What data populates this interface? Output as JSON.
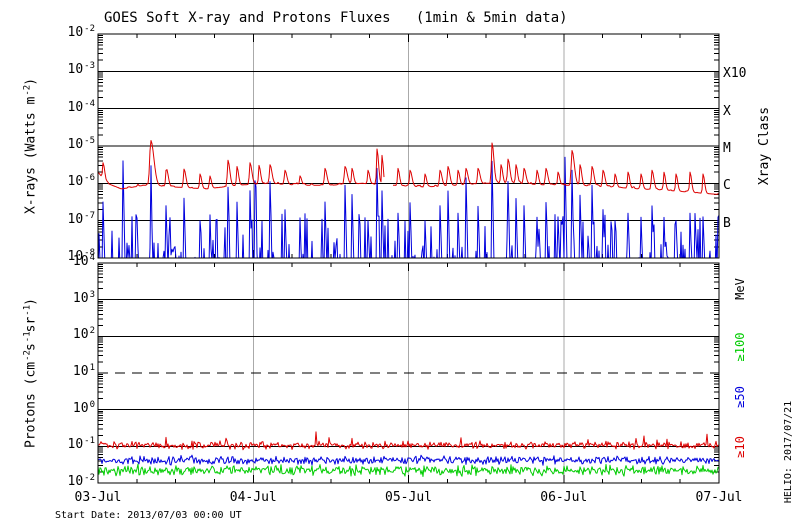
{
  "header": {
    "title": "GOES Soft X-ray and Protons Fluxes   (1min & 5min data)"
  },
  "footer": {
    "start_date": "Start Date: 2013/07/03 00:00 UT",
    "credit": "HELIO: 2017/07/21"
  },
  "colors": {
    "background": "#ffffff",
    "axis": "#000000",
    "day_gridline": "#aaaaaa",
    "xray_long": "#dd0000",
    "xray_short": "#0000dd",
    "protons_ge10": "#dd0000",
    "protons_ge50": "#0000dd",
    "protons_ge100": "#00cc00"
  },
  "chart_data": {
    "type": "line",
    "title": "GOES Soft X-ray and Protons Fluxes (1min & 5min data)",
    "x_axis": {
      "tick_labels": [
        "03-Jul",
        "04-Jul",
        "05-Jul",
        "06-Jul",
        "07-Jul"
      ],
      "minor_tick_hours": 6,
      "start": "2013/07/03 00:00 UT",
      "days": 4
    },
    "panels": [
      {
        "name": "xray",
        "ylabel_parts": [
          [
            "X-rays (Watts m",
            0
          ],
          [
            "-2",
            1
          ],
          [
            ")",
            0
          ]
        ],
        "ylim_log": [
          -8,
          -2
        ],
        "y_tick_exponents": [
          -2,
          -3,
          -4,
          -5,
          -6,
          -7,
          -8
        ],
        "hlines_log": [
          -3,
          -4,
          -5,
          -6,
          -7
        ],
        "right_axis": {
          "title": "Xray Class",
          "title_log": -5,
          "labels": [
            {
              "text": "X10",
              "log": -3
            },
            {
              "text": "X",
              "log": -4
            },
            {
              "text": "M",
              "log": -5
            },
            {
              "text": "C",
              "log": -6
            },
            {
              "text": "B",
              "log": -7
            }
          ]
        },
        "series": [
          {
            "name": "xray-short-05-4A",
            "color": "#0000dd",
            "kind": "spiky",
            "baseline_log": -8.45,
            "baseline_noise_dex": 0.25,
            "random_spikes": {
              "probability": 0.35,
              "log_min": -8.1,
              "log_span": 1.3
            },
            "spikes": [
              [
                0.032,
                -6.5
              ],
              [
                0.161,
                -5.4
              ],
              [
                0.25,
                -6.9
              ],
              [
                0.34,
                -5.45
              ],
              [
                0.438,
                -6.6
              ],
              [
                0.554,
                -6.4
              ],
              [
                0.657,
                -7.0
              ],
              [
                0.72,
                -6.8
              ],
              [
                0.837,
                -6.1
              ],
              [
                0.895,
                -6.5
              ],
              [
                0.979,
                -6.2
              ],
              [
                1.013,
                -5.25
              ],
              [
                1.108,
                -5.95
              ],
              [
                1.204,
                -6.7
              ],
              [
                1.3,
                -6.9
              ],
              [
                1.462,
                -6.5
              ],
              [
                1.591,
                -6.05
              ],
              [
                1.636,
                -6.3
              ],
              [
                1.739,
                -7.0
              ],
              [
                1.797,
                -5.6
              ],
              [
                1.829,
                -6.2
              ],
              [
                1.932,
                -6.8
              ],
              [
                2.01,
                -6.5
              ],
              [
                2.106,
                -7.0
              ],
              [
                2.203,
                -6.6
              ],
              [
                2.254,
                -6.2
              ],
              [
                2.319,
                -6.8
              ],
              [
                2.37,
                -5.85
              ],
              [
                2.448,
                -6.6
              ],
              [
                2.538,
                -5.4
              ],
              [
                2.641,
                -5.95
              ],
              [
                2.692,
                -6.4
              ],
              [
                2.744,
                -6.6
              ],
              [
                2.827,
                -6.9
              ],
              [
                2.885,
                -6.5
              ],
              [
                2.963,
                -6.9
              ],
              [
                3.008,
                -5.3
              ],
              [
                3.053,
                -5.65
              ],
              [
                3.105,
                -6.3
              ],
              [
                3.182,
                -6.05
              ],
              [
                3.253,
                -6.7
              ],
              [
                3.33,
                -7.0
              ],
              [
                3.414,
                -6.8
              ],
              [
                3.497,
                -6.9
              ],
              [
                3.568,
                -6.6
              ],
              [
                3.645,
                -6.9
              ],
              [
                3.723,
                -7.0
              ],
              [
                3.813,
                -6.8
              ],
              [
                3.897,
                -6.9
              ]
            ]
          },
          {
            "name": "xray-long-1-8A",
            "color": "#dd0000",
            "kind": "baseline",
            "baseline_log": [
              [
                0,
                -5.7
              ],
              [
                0.06,
                -6.0
              ],
              [
                0.15,
                -6.15
              ],
              [
                0.3,
                -6.05
              ],
              [
                0.5,
                -6.1
              ],
              [
                0.7,
                -6.15
              ],
              [
                0.9,
                -6.05
              ],
              [
                1.1,
                -6.0
              ],
              [
                1.3,
                -6.05
              ],
              [
                1.5,
                -6.05
              ],
              [
                1.7,
                -6.0
              ],
              [
                1.9,
                -6.05
              ],
              [
                2.1,
                -6.1
              ],
              [
                2.3,
                -6.05
              ],
              [
                2.5,
                -6.0
              ],
              [
                2.7,
                -6.0
              ],
              [
                2.9,
                -6.05
              ],
              [
                3.1,
                -6.05
              ],
              [
                3.3,
                -6.1
              ],
              [
                3.5,
                -6.15
              ],
              [
                3.7,
                -6.2
              ],
              [
                3.85,
                -6.25
              ],
              [
                4.0,
                -6.3
              ]
            ],
            "noise_dex": 0.07,
            "gaps": [
              [
                1.845,
                1.895
              ]
            ],
            "spikes": [
              [
                0.032,
                -5.45,
                0.01
              ],
              [
                0.34,
                -4.85,
                0.02
              ],
              [
                0.44,
                -5.6,
                0.012
              ],
              [
                0.554,
                -5.62,
                0.012
              ],
              [
                0.657,
                -5.75,
                0.01
              ],
              [
                0.72,
                -5.8,
                0.01
              ],
              [
                0.837,
                -5.38,
                0.012
              ],
              [
                0.895,
                -5.55,
                0.01
              ],
              [
                0.979,
                -5.45,
                0.012
              ],
              [
                1.037,
                -5.52,
                0.01
              ],
              [
                1.108,
                -5.5,
                0.012
              ],
              [
                1.204,
                -5.65,
                0.012
              ],
              [
                1.301,
                -5.8,
                0.01
              ],
              [
                1.462,
                -5.6,
                0.012
              ],
              [
                1.591,
                -5.55,
                0.014
              ],
              [
                1.636,
                -5.6,
                0.01
              ],
              [
                1.739,
                -5.65,
                0.01
              ],
              [
                1.797,
                -5.08,
                0.01
              ],
              [
                1.829,
                -5.25,
                0.008
              ],
              [
                1.932,
                -5.6,
                0.01
              ],
              [
                2.01,
                -5.65,
                0.012
              ],
              [
                2.106,
                -5.75,
                0.01
              ],
              [
                2.203,
                -5.65,
                0.012
              ],
              [
                2.254,
                -5.55,
                0.012
              ],
              [
                2.319,
                -5.65,
                0.01
              ],
              [
                2.37,
                -5.6,
                0.012
              ],
              [
                2.448,
                -5.6,
                0.012
              ],
              [
                2.538,
                -4.92,
                0.012
              ],
              [
                2.596,
                -5.5,
                0.01
              ],
              [
                2.641,
                -5.35,
                0.012
              ],
              [
                2.692,
                -5.5,
                0.01
              ],
              [
                2.744,
                -5.6,
                0.012
              ],
              [
                2.827,
                -5.65,
                0.01
              ],
              [
                2.885,
                -5.6,
                0.012
              ],
              [
                2.963,
                -5.7,
                0.01
              ],
              [
                3.053,
                -5.12,
                0.015
              ],
              [
                3.105,
                -5.5,
                0.01
              ],
              [
                3.182,
                -5.55,
                0.012
              ],
              [
                3.253,
                -5.65,
                0.012
              ],
              [
                3.33,
                -5.75,
                0.01
              ],
              [
                3.414,
                -5.7,
                0.01
              ],
              [
                3.497,
                -5.75,
                0.01
              ],
              [
                3.568,
                -5.65,
                0.012
              ],
              [
                3.645,
                -5.7,
                0.01
              ],
              [
                3.723,
                -5.75,
                0.01
              ],
              [
                3.813,
                -5.7,
                0.01
              ],
              [
                3.897,
                -5.75,
                0.01
              ]
            ]
          }
        ]
      },
      {
        "name": "protons",
        "ylabel_parts": [
          [
            "Protons (cm",
            0
          ],
          [
            "-2",
            1
          ],
          [
            "s",
            0
          ],
          [
            "-1",
            1
          ],
          [
            "sr",
            0
          ],
          [
            "-1",
            1
          ],
          [
            ")",
            0
          ]
        ],
        "ylim_log": [
          -2,
          4
        ],
        "y_tick_exponents": [
          4,
          3,
          2,
          1,
          0,
          -1,
          -2
        ],
        "hlines_log": [
          3,
          2,
          0,
          -1
        ],
        "hlines_dashed_log": [
          1
        ],
        "right_axis": {
          "title": "MeV",
          "title_log": 3.3,
          "labels": [
            {
              "text": "≥100",
              "log": 1.71,
              "color": "#00cc00"
            },
            {
              "text": "≥50",
              "log": 0.35,
              "color": "#0000dd"
            },
            {
              "text": "≥10",
              "log": -1.02,
              "color": "#dd0000"
            }
          ]
        },
        "series": [
          {
            "name": "protons-ge100MeV",
            "color": "#00cc00",
            "kind": "noisy",
            "mean_log": -1.66,
            "noise_dex": 0.16,
            "spike_prob": 0.0
          },
          {
            "name": "protons-ge50MeV",
            "color": "#0000dd",
            "kind": "noisy",
            "mean_log": -1.38,
            "noise_dex": 0.13,
            "spike_prob": 0.0
          },
          {
            "name": "protons-ge10MeV",
            "color": "#dd0000",
            "kind": "noisy",
            "mean_log": -0.97,
            "noise_dex": 0.11,
            "spike_prob": 0.04
          }
        ]
      }
    ]
  }
}
